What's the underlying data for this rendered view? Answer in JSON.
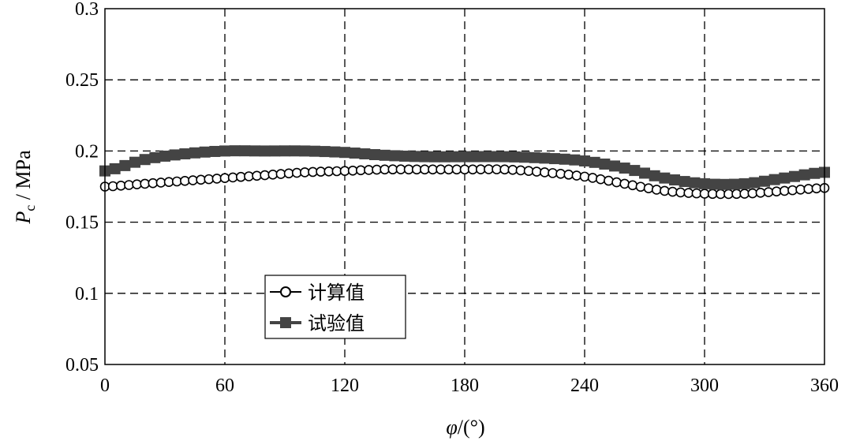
{
  "chart_data": {
    "type": "line",
    "title": "",
    "xlabel": {
      "symbol": "φ",
      "unit": "/(°)"
    },
    "ylabel": {
      "symbol": "P",
      "subscript": "c",
      "unit": " / MPa"
    },
    "xlim": [
      0,
      360
    ],
    "ylim": [
      0.05,
      0.3
    ],
    "xticks": [
      0,
      60,
      120,
      180,
      240,
      300,
      360
    ],
    "xtick_labels": [
      "0",
      "60",
      "120",
      "180",
      "240",
      "300",
      "360"
    ],
    "yticks": [
      0.05,
      0.1,
      0.15,
      0.2,
      0.25,
      0.3
    ],
    "ytick_labels": [
      "0.05",
      "0.1",
      "0.15",
      "0.2",
      "0.25",
      "0.3"
    ],
    "grid": true,
    "legend_position": "center-left",
    "series": [
      {
        "name": "计算值",
        "marker": "open-circle",
        "color": "#000000",
        "x": [
          0,
          20,
          40,
          60,
          80,
          100,
          120,
          140,
          160,
          180,
          200,
          220,
          240,
          260,
          280,
          300,
          320,
          340,
          360
        ],
        "y": [
          0.175,
          0.177,
          0.179,
          0.181,
          0.183,
          0.185,
          0.186,
          0.187,
          0.187,
          0.187,
          0.187,
          0.185,
          0.182,
          0.177,
          0.172,
          0.17,
          0.17,
          0.172,
          0.174
        ]
      },
      {
        "name": "试验值",
        "marker": "filled-square",
        "color": "#444444",
        "x": [
          0,
          20,
          40,
          60,
          80,
          100,
          120,
          140,
          160,
          180,
          200,
          220,
          240,
          260,
          280,
          300,
          320,
          340,
          360
        ],
        "y": [
          0.186,
          0.194,
          0.198,
          0.2,
          0.2,
          0.2,
          0.199,
          0.197,
          0.196,
          0.196,
          0.196,
          0.195,
          0.193,
          0.188,
          0.181,
          0.177,
          0.177,
          0.181,
          0.185
        ]
      }
    ]
  }
}
